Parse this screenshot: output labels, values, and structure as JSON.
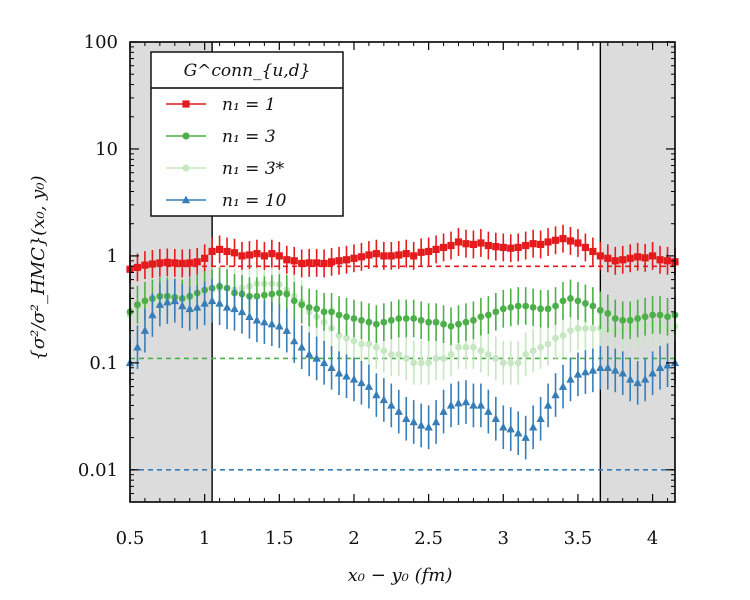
{
  "chart_data": {
    "type": "scatter",
    "title": "",
    "xlabel": "x₀ − y₀  (fm)",
    "ylabel": "{σ²/σ²_HMC}(x₀, y₀)",
    "xlim": [
      0.5,
      4.15
    ],
    "ylim": [
      0.005,
      100
    ],
    "yscale": "log",
    "x_ticks": [
      "0.5",
      "1",
      "1.5",
      "2",
      "2.5",
      "3",
      "3.5",
      "4"
    ],
    "y_ticks": [
      "0.01",
      "0.1",
      "1",
      "10",
      "100"
    ],
    "shaded_regions": [
      [
        0.5,
        1.05
      ],
      [
        3.65,
        4.15
      ]
    ],
    "legend": {
      "title": "G^conn_{u,d}",
      "placement": "top-left"
    },
    "reference_lines": [
      {
        "series": "n1 = 1",
        "y": 0.8,
        "color": "#e41a1c"
      },
      {
        "series": "n1 = 3",
        "y": 0.11,
        "color": "#4daf4a"
      },
      {
        "series": "n1 = 10",
        "y": 0.01,
        "color": "#377eb8"
      }
    ],
    "x": [
      0.5,
      0.55,
      0.6,
      0.65,
      0.7,
      0.75,
      0.8,
      0.85,
      0.9,
      0.95,
      1.0,
      1.05,
      1.1,
      1.15,
      1.2,
      1.25,
      1.3,
      1.35,
      1.4,
      1.45,
      1.5,
      1.55,
      1.6,
      1.65,
      1.7,
      1.75,
      1.8,
      1.85,
      1.9,
      1.95,
      2.0,
      2.05,
      2.1,
      2.15,
      2.2,
      2.25,
      2.3,
      2.35,
      2.4,
      2.45,
      2.5,
      2.55,
      2.6,
      2.65,
      2.7,
      2.75,
      2.8,
      2.85,
      2.9,
      2.95,
      3.0,
      3.05,
      3.1,
      3.15,
      3.2,
      3.25,
      3.3,
      3.35,
      3.4,
      3.45,
      3.5,
      3.55,
      3.6,
      3.65,
      3.7,
      3.75,
      3.8,
      3.85,
      3.9,
      3.95,
      4.0,
      4.05,
      4.1,
      4.15
    ],
    "series": [
      {
        "name": "n1 = 1",
        "label": "n₁ = 1",
        "color": "#e41a1c",
        "marker": "square",
        "values": [
          0.75,
          0.78,
          0.82,
          0.84,
          0.86,
          0.87,
          0.86,
          0.85,
          0.86,
          0.88,
          0.95,
          1.1,
          1.15,
          1.1,
          1.07,
          1.0,
          1.02,
          1.05,
          1.0,
          1.05,
          1.0,
          0.92,
          0.9,
          0.85,
          0.86,
          0.86,
          0.85,
          0.88,
          0.9,
          0.92,
          0.95,
          0.98,
          1.02,
          1.05,
          1.0,
          1.0,
          1.02,
          1.05,
          1.0,
          1.08,
          1.1,
          1.15,
          1.2,
          1.25,
          1.35,
          1.3,
          1.28,
          1.32,
          1.25,
          1.22,
          1.2,
          1.18,
          1.2,
          1.25,
          1.3,
          1.28,
          1.35,
          1.4,
          1.45,
          1.38,
          1.32,
          1.2,
          1.1,
          1.0,
          0.95,
          0.9,
          0.92,
          0.95,
          0.98,
          0.96,
          1.0,
          0.92,
          0.9,
          0.88
        ],
        "err_factor": 1.35
      },
      {
        "name": "n1 = 3",
        "label": "n₁ = 3",
        "color": "#4daf4a",
        "marker": "circle",
        "values": [
          0.3,
          0.35,
          0.38,
          0.4,
          0.42,
          0.42,
          0.41,
          0.4,
          0.42,
          0.45,
          0.48,
          0.5,
          0.52,
          0.5,
          0.45,
          0.44,
          0.42,
          0.42,
          0.43,
          0.44,
          0.45,
          0.44,
          0.38,
          0.35,
          0.33,
          0.32,
          0.3,
          0.3,
          0.28,
          0.27,
          0.26,
          0.25,
          0.24,
          0.23,
          0.24,
          0.25,
          0.26,
          0.26,
          0.26,
          0.25,
          0.24,
          0.24,
          0.23,
          0.22,
          0.23,
          0.24,
          0.25,
          0.27,
          0.28,
          0.3,
          0.32,
          0.33,
          0.34,
          0.34,
          0.33,
          0.32,
          0.32,
          0.34,
          0.38,
          0.4,
          0.38,
          0.36,
          0.34,
          0.31,
          0.29,
          0.26,
          0.25,
          0.25,
          0.26,
          0.27,
          0.28,
          0.28,
          0.27,
          0.28
        ],
        "err_factor": 1.5
      },
      {
        "name": "n1 = 3*",
        "label": "n₁ = 3*",
        "color": "#c7e6c2",
        "marker": "circle",
        "values": [
          0.28,
          0.33,
          0.36,
          0.38,
          0.4,
          0.4,
          0.39,
          0.38,
          0.4,
          0.44,
          0.47,
          0.49,
          0.5,
          0.5,
          0.48,
          0.5,
          0.52,
          0.55,
          0.55,
          0.55,
          0.54,
          0.48,
          0.42,
          0.37,
          0.3,
          0.27,
          0.24,
          0.21,
          0.18,
          0.17,
          0.16,
          0.15,
          0.15,
          0.14,
          0.13,
          0.12,
          0.12,
          0.11,
          0.1,
          0.1,
          0.1,
          0.11,
          0.11,
          0.12,
          0.14,
          0.14,
          0.14,
          0.13,
          0.12,
          0.11,
          0.1,
          0.1,
          0.1,
          0.12,
          0.13,
          0.14,
          0.15,
          0.17,
          0.18,
          0.2,
          0.21,
          0.21,
          0.21,
          0.21,
          0.2,
          0.2,
          0.2,
          0.21,
          0.22,
          0.22,
          0.23,
          0.22,
          0.21,
          0.22
        ],
        "err_factor": 1.6
      },
      {
        "name": "n1 = 10",
        "label": "n₁ = 10",
        "color": "#377eb8",
        "marker": "triangle",
        "values": [
          0.1,
          0.14,
          0.2,
          0.28,
          0.35,
          0.37,
          0.38,
          0.34,
          0.32,
          0.33,
          0.36,
          0.38,
          0.36,
          0.33,
          0.32,
          0.3,
          0.27,
          0.25,
          0.24,
          0.23,
          0.22,
          0.2,
          0.16,
          0.14,
          0.12,
          0.11,
          0.1,
          0.09,
          0.08,
          0.075,
          0.07,
          0.065,
          0.06,
          0.05,
          0.045,
          0.04,
          0.035,
          0.03,
          0.028,
          0.026,
          0.025,
          0.028,
          0.035,
          0.04,
          0.042,
          0.043,
          0.04,
          0.04,
          0.035,
          0.03,
          0.025,
          0.024,
          0.022,
          0.02,
          0.025,
          0.03,
          0.04,
          0.05,
          0.06,
          0.07,
          0.078,
          0.082,
          0.085,
          0.09,
          0.09,
          0.085,
          0.08,
          0.07,
          0.065,
          0.07,
          0.08,
          0.09,
          0.095,
          0.1
        ],
        "err_factor": 1.6
      }
    ]
  }
}
